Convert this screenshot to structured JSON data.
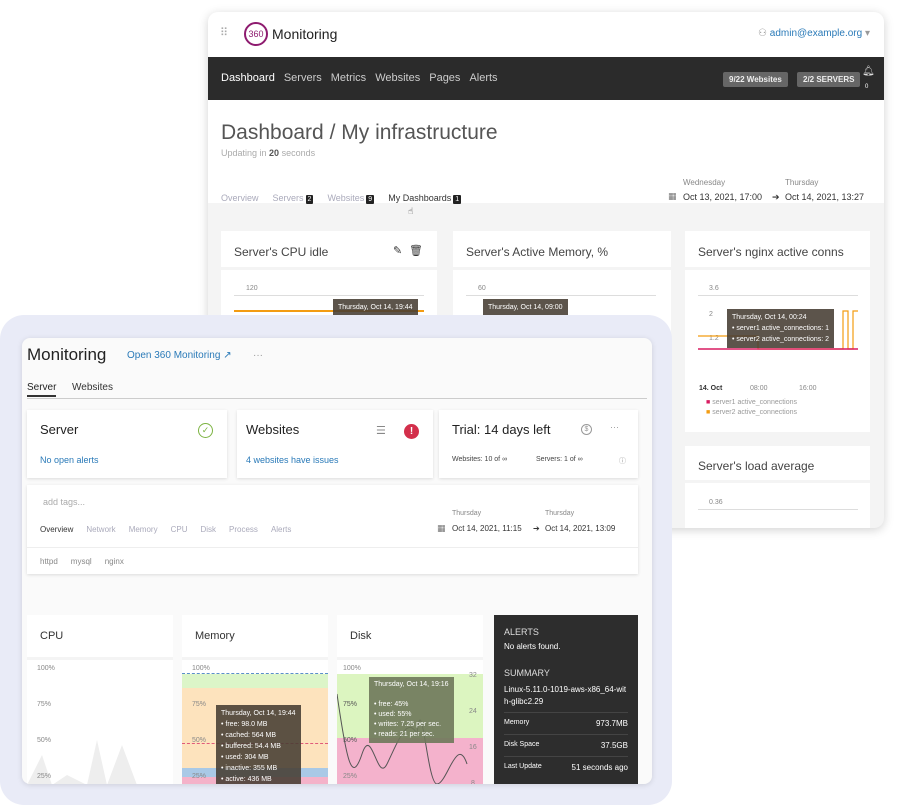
{
  "back": {
    "logo_text": "Monitoring",
    "logo_mark": "360",
    "user": "admin@example.org",
    "nav": [
      "Dashboard",
      "Servers",
      "Metrics",
      "Websites",
      "Pages",
      "Alerts"
    ],
    "websites_pill": "9/22 Websites",
    "servers_pill": "2/2 SERVERS",
    "bell_count": "0",
    "title": "Dashboard / My infrastructure",
    "updating_prefix": "Updating in ",
    "updating_num": "20",
    "updating_suffix": " seconds",
    "tabs": [
      {
        "label": "Overview"
      },
      {
        "label": "Servers",
        "count": "2"
      },
      {
        "label": "Websites",
        "count": "9"
      },
      {
        "label": "My Dashboards",
        "count": "1"
      }
    ],
    "range": {
      "from_day": "Wednesday",
      "from": "Oct 13, 2021, 17:00",
      "to_day": "Thursday",
      "to": "Oct 14, 2021, 13:27"
    },
    "cards": [
      {
        "title": "Server's CPU idle",
        "tick": "120",
        "tooltip": "Thursday, Oct 14, 19:44"
      },
      {
        "title": "Server's Active Memory, %",
        "tick": "60",
        "tooltip": "Thursday, Oct 14, 09:00"
      },
      {
        "title": "Server's nginx active conns",
        "ticks": [
          "3.6",
          "2",
          "1.2"
        ],
        "tooltip": "Thursday, Oct 14, 00:24",
        "tt1": "server1 active_connections: 1",
        "tt2": "server2 active_connections: 2",
        "x_ticks": [
          "14. Oct",
          "08:00",
          "16:00"
        ],
        "legend": [
          "server1 active_connections",
          "server2 active_connections"
        ]
      },
      {
        "title": "Server's load average",
        "tick": "0.36"
      }
    ],
    "colors": {
      "server1": "#d81b60",
      "server2": "#f39c12"
    }
  },
  "front": {
    "title": "Monitoring",
    "open_link": "Open 360 Monitoring",
    "more": "···",
    "tabs": [
      "Server",
      "Websites"
    ],
    "server_card": {
      "title": "Server",
      "link": "No open alerts"
    },
    "websites_card": {
      "title": "Websites",
      "link": "4 websites have issues"
    },
    "trial_card": {
      "title": "Trial: 14 days left",
      "websites": "Websites: 10 of ∞",
      "servers": "Servers: 1 of ∞"
    },
    "tags_placeholder": "add tags...",
    "subtabs": [
      "Overview",
      "Network",
      "Memory",
      "CPU",
      "Disk",
      "Process",
      "Alerts"
    ],
    "range": {
      "from_day": "Thursday",
      "from": "Oct 14, 2021, 11:15",
      "to_day": "Thursday",
      "to": "Oct 14, 2021, 13:09"
    },
    "services": [
      "httpd",
      "mysql",
      "nginx"
    ],
    "cpu": {
      "title": "CPU",
      "ticks": [
        "100%",
        "75%",
        "50%",
        "25%"
      ]
    },
    "memory": {
      "title": "Memory",
      "ticks": [
        "100%",
        "75%",
        "50%",
        "25%"
      ],
      "tooltip": {
        "title": "Thursday, Oct 14, 19:44",
        "lines": [
          "free: 98.0 MB",
          "cached: 564 MB",
          "buffered: 54.4 MB",
          "used: 304 MB",
          "inactive: 355 MB",
          "active: 436 MB"
        ]
      }
    },
    "disk": {
      "title": "Disk",
      "ticks": [
        "100%",
        "75%",
        "50%",
        "25%"
      ],
      "right_ticks": [
        "32",
        "24",
        "16",
        "8"
      ],
      "tooltip": {
        "title": "Thursday, Oct 14, 19:16",
        "lines": [
          "free: 45%",
          "used: 55%",
          "writes: 7.25 per sec.",
          "reads: 21 per sec."
        ]
      }
    },
    "alerts": {
      "heading": "ALERTS",
      "text": "No alerts found.",
      "summary_heading": "SUMMARY",
      "os": "Linux-5.11.0-1019-aws-x86_64-with-glibc2.29",
      "rows": [
        {
          "label": "Memory",
          "value": "973.7MB"
        },
        {
          "label": "Disk Space",
          "value": "37.5GB"
        },
        {
          "label": "Last Update",
          "value": "51 seconds ago"
        }
      ]
    }
  }
}
